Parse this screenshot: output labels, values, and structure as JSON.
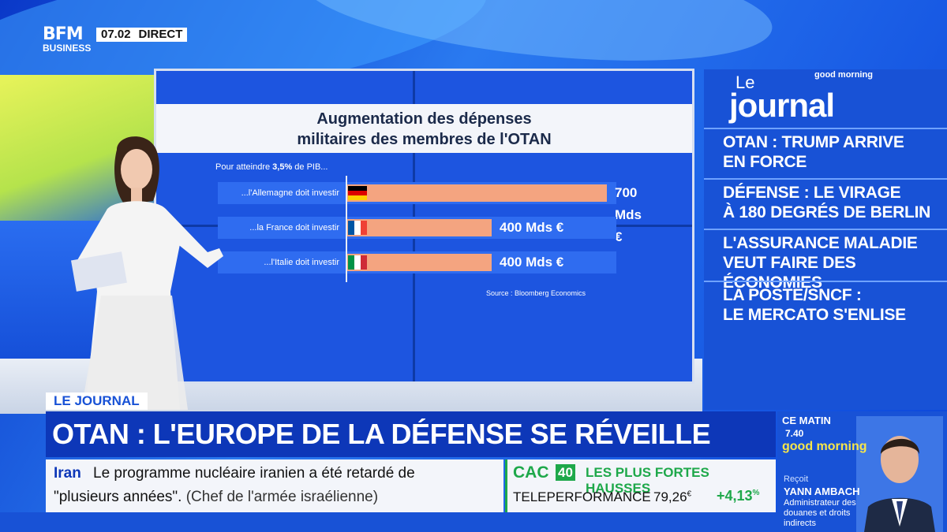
{
  "channel": {
    "logo_top": "BFM",
    "logo_bottom": "BUSINESS",
    "clock": "07.02",
    "live": "DIRECT"
  },
  "chart_data": {
    "type": "bar",
    "title_line1": "Augmentation des dépenses",
    "title_line2": "militaires des membres de l'OTAN",
    "subtitle_prefix": "Pour atteindre ",
    "subtitle_bold": "3,5%",
    "subtitle_suffix": " de PIB...",
    "categories": [
      "...l'Allemagne doit investir",
      "...la France doit investir",
      "...l'Italie doit investir"
    ],
    "values": [
      700,
      400,
      400
    ],
    "value_labels": [
      "700 Mds €",
      "400 Mds €",
      "400 Mds €"
    ],
    "xlim": [
      0,
      700
    ],
    "source": "Source : Bloomberg Economics",
    "bar_color": "#f4a480"
  },
  "journal": {
    "le": "Le",
    "title": "journal",
    "brand": "good morning",
    "stories": [
      {
        "line1": "OTAN : TRUMP ARRIVE",
        "line2": "EN FORCE"
      },
      {
        "line1": "DÉFENSE : LE VIRAGE",
        "line2": "À 180 DEGRÉS DE BERLIN"
      },
      {
        "line1": "L'ASSURANCE MALADIE",
        "line2": "VEUT FAIRE DES ÉCONOMIES"
      },
      {
        "line1": "LA POSTE/SNCF :",
        "line2": "LE MERCATO S'ENLISE"
      }
    ]
  },
  "lower_third": {
    "tag": "LE JOURNAL",
    "headline": "OTAN : L'EUROPE DE LA DÉFENSE SE RÉVEILLE"
  },
  "ticker": {
    "topic": "Iran",
    "line1": "Le programme nucléaire iranien a été retardé de",
    "line2_quote": "\"plusieurs années\".",
    "line2_attr": "(Chef de l'armée israélienne)"
  },
  "market": {
    "index": "CAC",
    "index_num": "40",
    "header": "LES PLUS FORTES HAUSSES",
    "stock": "TELEPERFORMANCE",
    "price": "79,26",
    "price_unit": "€",
    "change": "+4,13",
    "change_unit": "%",
    "accent": "#1ea84a"
  },
  "promo": {
    "label": "CE MATIN",
    "time": "7.40",
    "brand": "good morning",
    "receives": "Reçoit",
    "guest": "YANN AMBACH",
    "role": "Administrateur des douanes et droits indirects"
  }
}
